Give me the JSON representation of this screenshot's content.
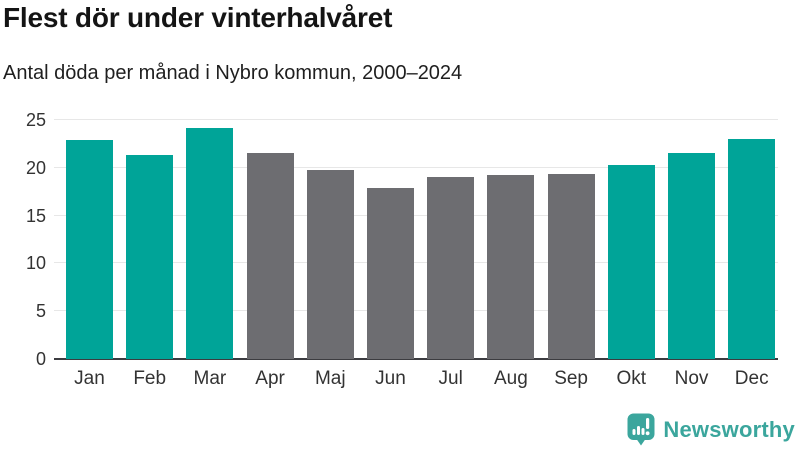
{
  "header": {
    "title": "Flest dör under vinterhalvåret",
    "subtitle": "Antal döda per månad i Nybro kommun, 2000–2024"
  },
  "chart_data": {
    "type": "bar",
    "title": "Flest dör under vinterhalvåret",
    "subtitle": "Antal döda per månad i Nybro kommun, 2000–2024",
    "categories": [
      "Jan",
      "Feb",
      "Mar",
      "Apr",
      "Maj",
      "Jun",
      "Jul",
      "Aug",
      "Sep",
      "Okt",
      "Nov",
      "Dec"
    ],
    "values": [
      22.9,
      21.3,
      24.2,
      21.5,
      19.8,
      17.9,
      19.0,
      19.3,
      19.4,
      20.3,
      21.6,
      23.0
    ],
    "highlighted_categories": [
      "Jan",
      "Feb",
      "Mar",
      "Okt",
      "Nov",
      "Dec"
    ],
    "xlabel": "",
    "ylabel": "",
    "yticks": [
      0,
      5,
      10,
      15,
      20,
      25
    ],
    "ylim": [
      0,
      25
    ],
    "grid": true,
    "legend": false,
    "colors": {
      "highlight": "#00a498",
      "default": "#6d6d71"
    }
  },
  "footer": {
    "brand": "Newsworthy",
    "brand_color": "#3ba69d"
  }
}
